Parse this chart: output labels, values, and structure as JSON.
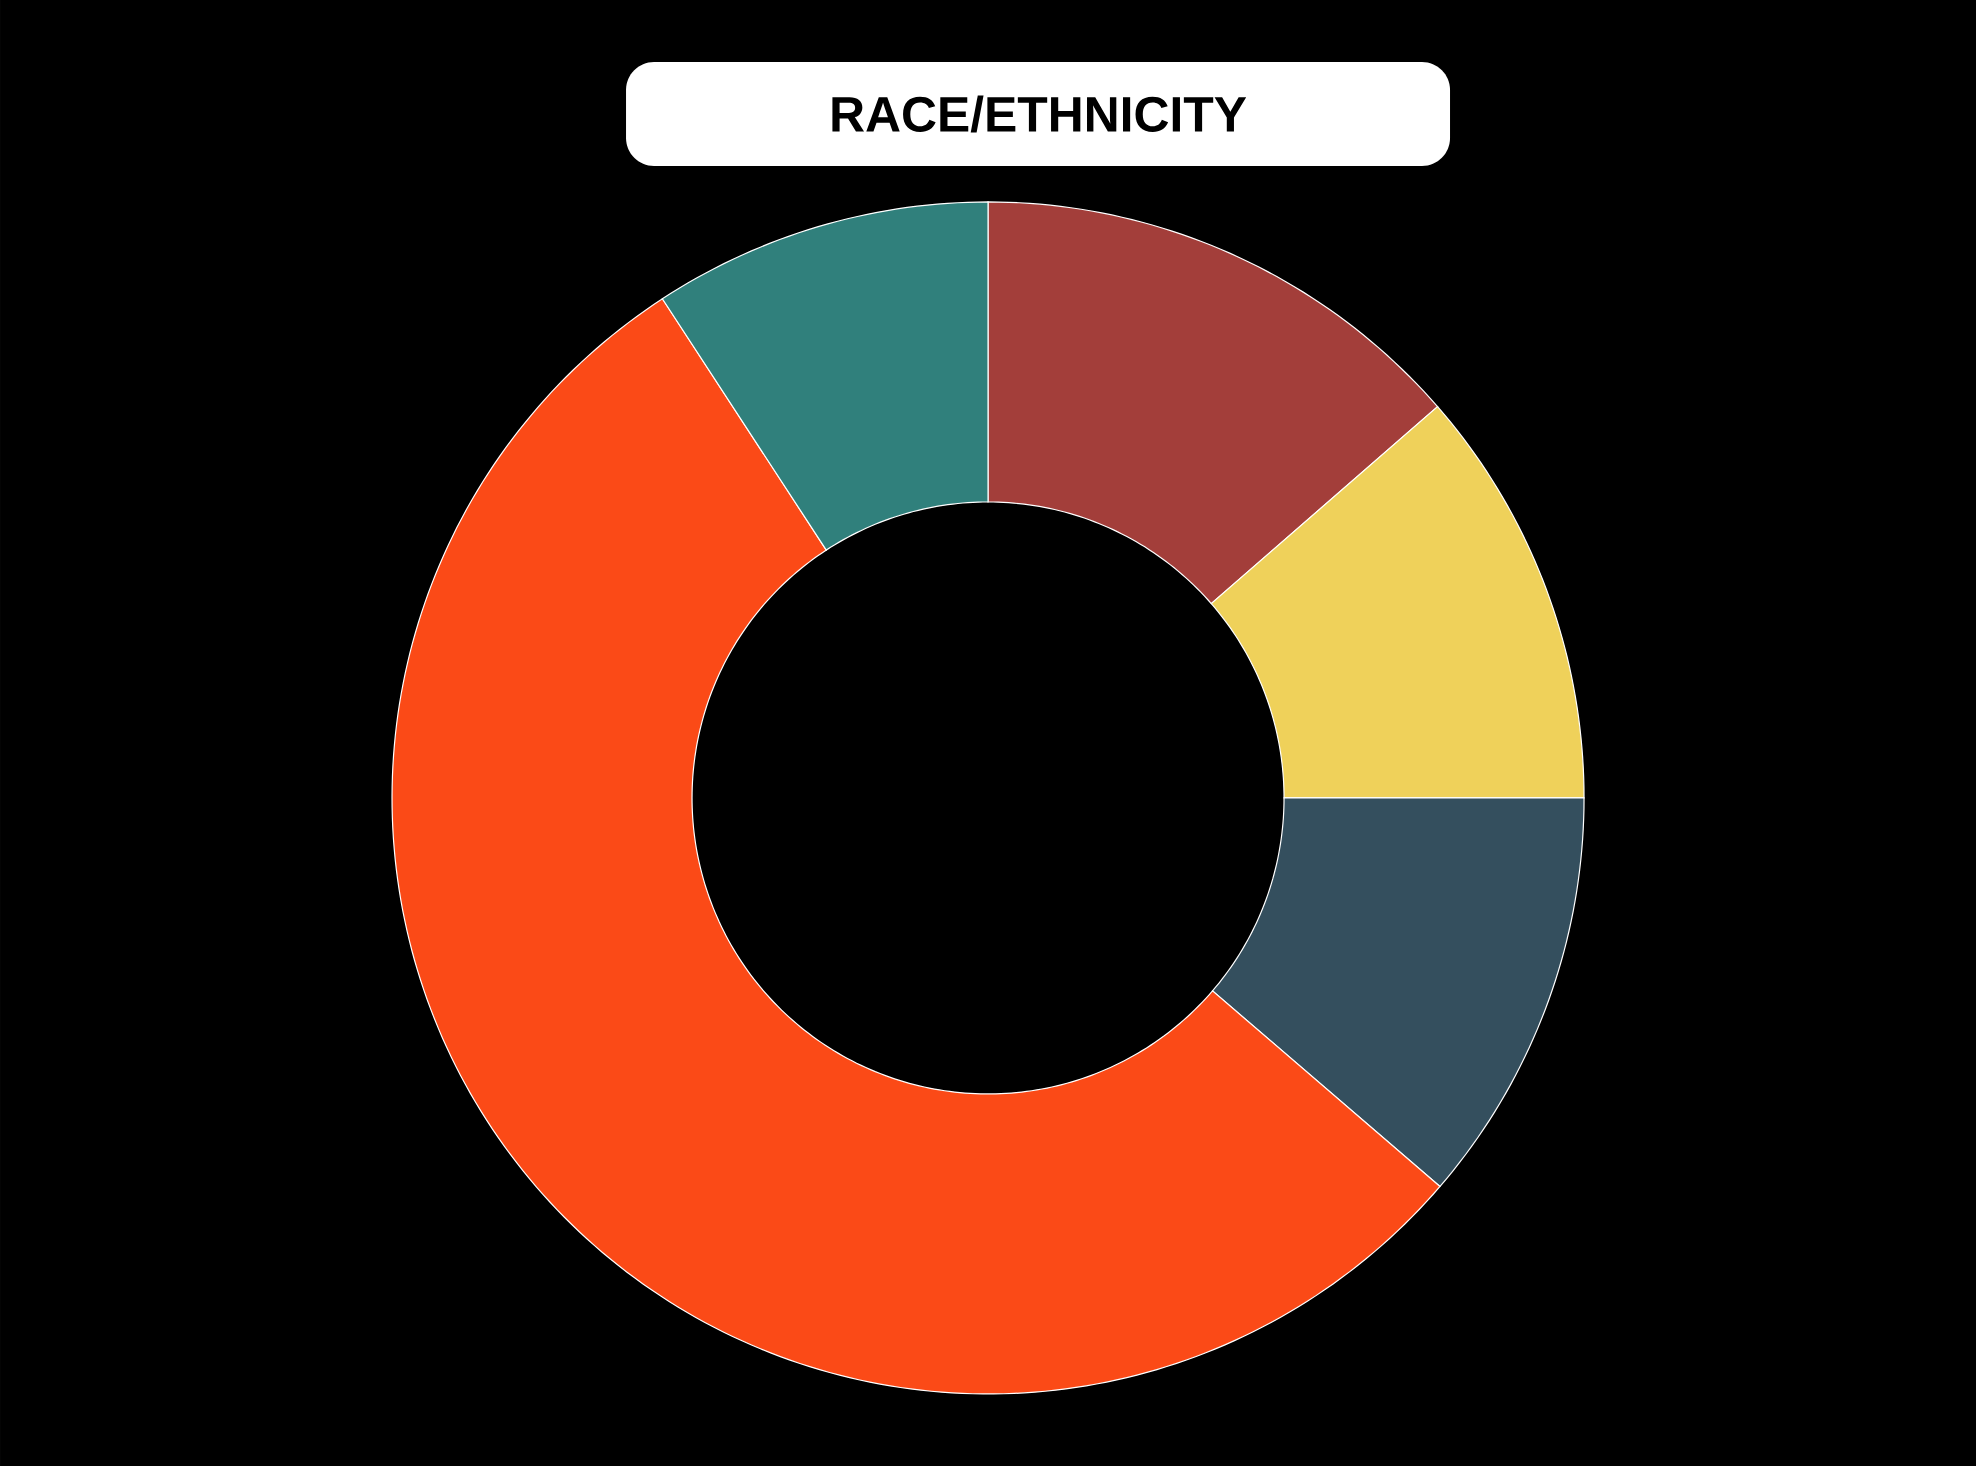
{
  "chart_data": {
    "type": "donut",
    "title": "RACE/ETHNICITY",
    "categories": [
      null,
      null,
      null,
      null,
      null
    ],
    "values": [
      13.6,
      11.4,
      11.3,
      54.5,
      9.2
    ],
    "colors": [
      "#a33e3a",
      "#efd15a",
      "#344f5e",
      "#fb4a17",
      "#30807c"
    ]
  }
}
